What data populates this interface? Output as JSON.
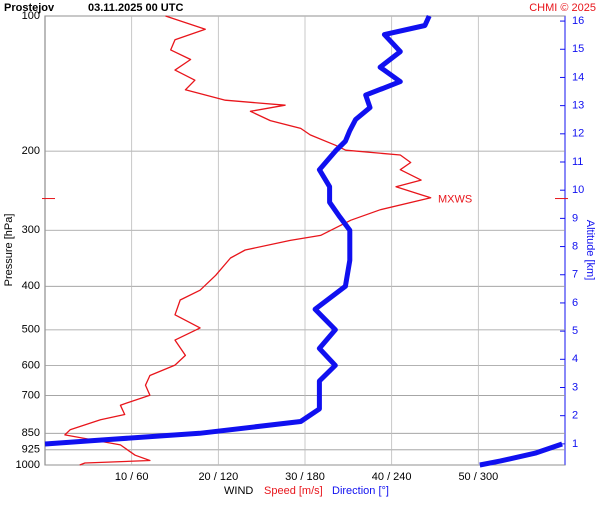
{
  "chart_data": {
    "type": "line",
    "title": "Prostejov",
    "subtitle": "03.11.2025 00 UTC",
    "credit": "CHMI © 2025",
    "y_label": "Pressure [hPa]",
    "y2_label": "Altitude [km]",
    "x_label": "WIND",
    "x_label_speed": "Speed [m/s]",
    "x_label_direction": "Direction [°]",
    "ylog": true,
    "ylim": [
      1000,
      100
    ],
    "yticks": [
      100,
      200,
      300,
      400,
      500,
      600,
      700,
      850,
      925,
      1000
    ],
    "y2lim": [
      0.25,
      16.18
    ],
    "y2ticks": [
      1,
      2,
      3,
      4,
      5,
      6,
      7,
      8,
      9,
      10,
      11,
      12,
      13,
      14,
      15,
      16
    ],
    "xlim": [
      0,
      60
    ],
    "x2lim": [
      0,
      360
    ],
    "xticks": [
      {
        "value": 10,
        "label": "10 / 60"
      },
      {
        "value": 20,
        "label": "20 / 120"
      },
      {
        "value": 30,
        "label": "30 / 180"
      },
      {
        "value": 40,
        "label": "40 / 240"
      },
      {
        "value": 50,
        "label": "50 / 300"
      }
    ],
    "grid": true,
    "annotation": {
      "text": "MXWS",
      "y": 255
    },
    "series": [
      {
        "name": "Speed",
        "color": "#e8151b",
        "axis": "x",
        "y": [
          100,
          107,
          113,
          119,
          125,
          132,
          139,
          146,
          154,
          158,
          163,
          171,
          178,
          184,
          194,
          199,
          204,
          212,
          220,
          232,
          240,
          250,
          254,
          270,
          285,
          308,
          316,
          332,
          346,
          378,
          408,
          429,
          463,
          495,
          527,
          570,
          599,
          632,
          664,
          699,
          736,
          772,
          793,
          835,
          857,
          902,
          951,
          977,
          990,
          1000
        ],
        "values": [
          13.9,
          18.5,
          15.0,
          14.5,
          16.8,
          15.0,
          17.3,
          16.2,
          20.8,
          27.7,
          23.7,
          26.0,
          29.5,
          30.6,
          33.5,
          34.7,
          41.0,
          42.2,
          41.0,
          43.4,
          40.5,
          43.4,
          44.5,
          38.7,
          35.3,
          31.8,
          28.3,
          23.1,
          21.4,
          19.7,
          17.9,
          15.6,
          15.0,
          17.9,
          15.0,
          16.2,
          15.0,
          12.1,
          11.6,
          12.1,
          8.7,
          9.2,
          6.4,
          2.9,
          2.3,
          8.7,
          10.4,
          12.1,
          4.6,
          4.0
        ]
      },
      {
        "name": "Direction",
        "color": "#1010f0",
        "axis": "x2",
        "y": [
          100,
          105,
          110,
          120,
          130,
          140,
          150,
          160,
          170,
          180,
          190,
          200,
          220,
          240,
          260,
          280,
          300,
          350,
          400,
          450,
          500,
          550,
          600,
          650,
          700,
          750,
          800,
          850,
          880,
          898,
          898,
          898,
          940,
          980,
          1000
        ],
        "values": [
          266,
          263,
          235,
          246,
          232,
          246,
          222,
          225,
          215,
          211,
          208,
          201,
          190,
          197,
          197,
          204,
          211,
          211,
          208,
          187,
          201,
          190,
          201,
          190,
          190,
          190,
          177,
          107,
          38,
          0,
          null,
          358,
          340,
          315,
          301
        ]
      }
    ]
  }
}
